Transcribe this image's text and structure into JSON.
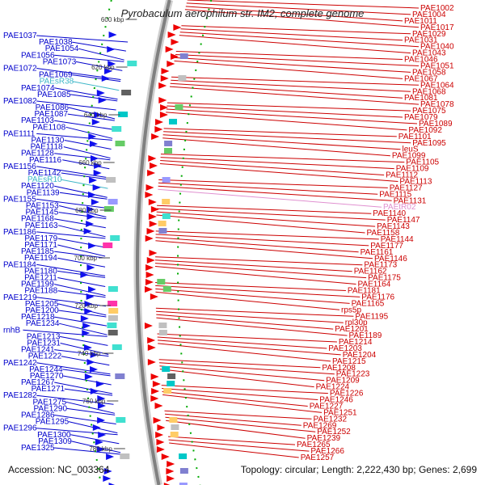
{
  "title": "Pyrobaculum aerophilum str. IM2, complete genome",
  "accession": "Accession: NC_003364",
  "topology": "Topology: circular; Length: 2,222,430 bp; Genes: 2,699",
  "colors": {
    "left_label": "#0000cc",
    "right_label": "#cc0000",
    "rna_label": "#3fb7c8",
    "trna_right_label": "#e090d0",
    "ring": "#808080",
    "tick": "#00aa00",
    "background": "#ffffff"
  },
  "kbp_ticks": [
    "600 kbp",
    "620 kbp",
    "640 kbp",
    "660 kbp",
    "680 kbp",
    "700 kbp",
    "720 kbp",
    "740 kbp",
    "760 kbp",
    "780 kbp"
  ],
  "left_labels": [
    "PAE1037",
    "PAE1038",
    "PAE1054",
    "PAE1056",
    "PAE1073",
    "PAE1072",
    "PAE1069",
    "PAEsR38",
    "PAE1074",
    "PAE1085",
    "PAE1082",
    "PAE1086",
    "PAE1087",
    "PAE1103",
    "PAE1108",
    "PAE1111",
    "PAE1130",
    "PAE1118",
    "PAE1128",
    "PAE1116",
    "PAE1156",
    "PAE1142",
    "PAEsR10",
    "PAE1120",
    "PAE1139",
    "PAE1155",
    "PAE1153",
    "PAE1145",
    "PAE1168",
    "PAE1163",
    "PAE1186",
    "PAE1179",
    "PAE1171",
    "PAE1185",
    "PAE1194",
    "PAE1184",
    "PAE1180",
    "PAE1211",
    "PAE1199",
    "PAE1188",
    "PAE1219",
    "PAE1205",
    "PAE1200",
    "PAE1218",
    "PAE1234",
    "rnhB",
    "PAE1213",
    "PAE1231",
    "PAE1241",
    "PAE1222",
    "PAE1242",
    "PAE1244",
    "PAE1270",
    "PAE1267",
    "PAE1271",
    "PAE1282",
    "PAE1275",
    "PAE1290",
    "PAE1286",
    "PAE1295",
    "PAE1296",
    "PAE1300",
    "PAE1309",
    "PAE1325"
  ],
  "right_labels": [
    "PAE1002",
    "PAE1004",
    "PAE1011",
    "PAE1017",
    "PAE1029",
    "PAE1031",
    "PAE1040",
    "PAE1043",
    "PAE1046",
    "PAE1051",
    "PAE1058",
    "PAE1067",
    "PAE1064",
    "PAE1068",
    "PAE1081",
    "PAE1078",
    "PAE1075",
    "PAE1079",
    "PAE1089",
    "PAE1092",
    "PAE1101",
    "PAE1095",
    "leuS",
    "PAE1099",
    "PAE1105",
    "PAE1109",
    "PAE1112",
    "PAE1113",
    "PAE1127",
    "PAE1115",
    "PAE1131",
    "PAEtR02",
    "PAE1140",
    "PAE1147",
    "PAE1143",
    "PAE1158",
    "PAE1144",
    "PAE1177",
    "PAE1161",
    "PAE1146",
    "PAE1173",
    "PAE1162",
    "PAE1175",
    "PAE1164",
    "PAE1181",
    "PAE1176",
    "PAE1165",
    "rps5p",
    "PAE1195",
    "rpl30p",
    "PAE1201",
    "PAE1189",
    "PAE1214",
    "PAE1203",
    "PAE1204",
    "PAE1215",
    "PAE1208",
    "PAE1223",
    "PAE1209",
    "PAE1224",
    "PAE1226",
    "PAE1246",
    "PAE1227",
    "PAE1251",
    "PAE1232",
    "PAE1269",
    "PAE1252",
    "PAE1239",
    "PAE1265",
    "PAE1266",
    "PAE1257"
  ]
}
